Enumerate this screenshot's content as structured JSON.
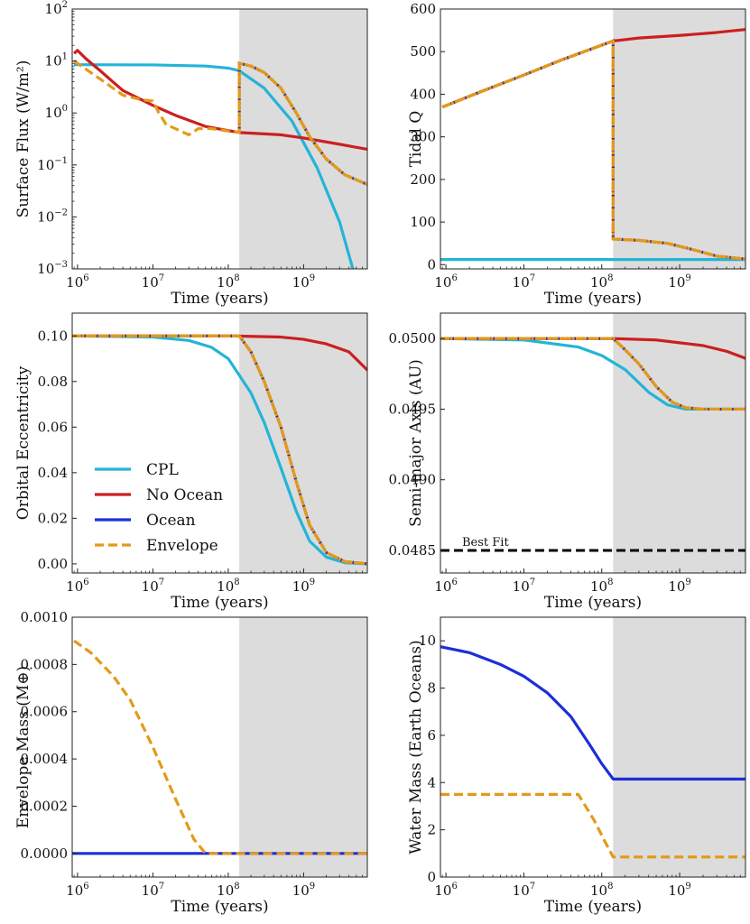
{
  "colors": {
    "CPL": "#23b4d8",
    "No Ocean": "#cc1f1f",
    "Ocean": "#1c2fd6",
    "Envelope": "#e39a1a",
    "shade": "#dcdcdc",
    "best_fit": "#000000"
  },
  "legend": {
    "placement": "lower-left of Orbital Eccentricity panel",
    "entries": [
      "CPL",
      "No Ocean",
      "Ocean",
      "Envelope"
    ]
  },
  "chart_data": [
    {
      "id": "surface_flux",
      "type": "line",
      "xscale": "log",
      "yscale": "log",
      "xlim": [
        850000,
        7000000000
      ],
      "ylim": [
        0.001,
        100
      ],
      "xlabel": "Time (years)",
      "ylabel": "Surface Flux (W/m²)",
      "xticks": [
        1000000,
        10000000,
        100000000,
        1000000000
      ],
      "xtick_labels": [
        "10⁶",
        "10⁷",
        "10⁸",
        "10⁹"
      ],
      "yticks": [
        0.001,
        0.01,
        0.1,
        1,
        10,
        100
      ],
      "ytick_labels": [
        "10⁻³",
        "10⁻²",
        "10⁻¹",
        "10⁰",
        "10¹",
        "10²"
      ],
      "shade_from": 140000000,
      "series": [
        {
          "name": "CPL",
          "style": "solid",
          "x": [
            900000,
            10000000,
            50000000,
            100000000,
            140000000,
            300000000,
            700000000,
            1500000000,
            3000000000,
            4500000000
          ],
          "y": [
            8.5,
            8.4,
            8.0,
            7.3,
            6.5,
            3.0,
            0.7,
            0.09,
            0.008,
            0.001
          ]
        },
        {
          "name": "No Ocean",
          "style": "solid",
          "x": [
            900000,
            1000000,
            1300000,
            2000000,
            4000000,
            10000000,
            20000000,
            50000000,
            140000000,
            500000000,
            1000000000,
            3000000000,
            7000000000
          ],
          "y": [
            14,
            16,
            11,
            6.5,
            2.7,
            1.4,
            0.9,
            0.55,
            0.42,
            0.38,
            0.33,
            0.25,
            0.2
          ]
        },
        {
          "name": "Ocean",
          "style": "dotted",
          "x": [
            140000000,
            140000000,
            200000000,
            300000000,
            500000000,
            800000000,
            1200000000,
            2000000000,
            3500000000,
            7000000000
          ],
          "y": [
            0.42,
            9.0,
            8.0,
            6.0,
            3.0,
            1.0,
            0.35,
            0.13,
            0.065,
            0.042
          ]
        },
        {
          "name": "Envelope",
          "style": "dashed",
          "x": [
            900000,
            1000000,
            2000000,
            4000000,
            7000000,
            10000000,
            12000000,
            15000000,
            30000000,
            40000000,
            60000000,
            100000000,
            140000000,
            140000000,
            200000000,
            300000000,
            500000000,
            800000000,
            1200000000,
            2000000000,
            3500000000,
            7000000000
          ],
          "y": [
            10,
            9,
            4.5,
            2.2,
            1.8,
            1.7,
            1.0,
            0.6,
            0.38,
            0.5,
            0.5,
            0.45,
            0.42,
            9.0,
            8.0,
            6.0,
            3.0,
            1.0,
            0.35,
            0.13,
            0.065,
            0.042
          ]
        }
      ]
    },
    {
      "id": "tidal_q",
      "type": "line",
      "xscale": "log",
      "yscale": "linear",
      "xlim": [
        850000,
        7000000000
      ],
      "ylim": [
        -10,
        600
      ],
      "xlabel": "Time (years)",
      "ylabel": "Tidal Q",
      "xticks": [
        1000000,
        10000000,
        100000000,
        1000000000
      ],
      "xtick_labels": [
        "10⁶",
        "10⁷",
        "10⁸",
        "10⁹"
      ],
      "yticks": [
        0,
        100,
        200,
        300,
        400,
        500,
        600
      ],
      "ytick_labels": [
        "0",
        "100",
        "200",
        "300",
        "400",
        "500",
        "600"
      ],
      "shade_from": 140000000,
      "series": [
        {
          "name": "CPL",
          "style": "solid",
          "x": [
            850000,
            7000000000
          ],
          "y": [
            12,
            12
          ]
        },
        {
          "name": "No Ocean",
          "style": "solid",
          "x": [
            900000,
            3000000,
            10000000,
            30000000,
            140000000,
            300000000,
            1000000000,
            3000000000,
            7000000000
          ],
          "y": [
            370,
            408,
            445,
            480,
            525,
            532,
            538,
            545,
            552
          ]
        },
        {
          "name": "Ocean",
          "style": "dotted",
          "x": [
            900000,
            3000000,
            10000000,
            30000000,
            140000000,
            140000000,
            300000000,
            700000000,
            1500000000,
            3000000000,
            7000000000
          ],
          "y": [
            370,
            408,
            445,
            480,
            525,
            60,
            57,
            50,
            35,
            20,
            13
          ]
        },
        {
          "name": "Envelope",
          "style": "dashed",
          "x": [
            900000,
            3000000,
            10000000,
            30000000,
            140000000,
            140000000,
            300000000,
            700000000,
            1500000000,
            3000000000,
            7000000000
          ],
          "y": [
            370,
            408,
            445,
            480,
            525,
            60,
            57,
            50,
            35,
            20,
            13
          ]
        }
      ]
    },
    {
      "id": "eccentricity",
      "type": "line",
      "xscale": "log",
      "yscale": "linear",
      "xlim": [
        850000,
        7000000000
      ],
      "ylim": [
        -0.004,
        0.11
      ],
      "xlabel": "Time (years)",
      "ylabel": "Orbital Eccentricity",
      "xticks": [
        1000000,
        10000000,
        100000000,
        1000000000
      ],
      "xtick_labels": [
        "10⁶",
        "10⁷",
        "10⁸",
        "10⁹"
      ],
      "yticks": [
        0,
        0.02,
        0.04,
        0.06,
        0.08,
        0.1
      ],
      "ytick_labels": [
        "0.00",
        "0.02",
        "0.04",
        "0.06",
        "0.08",
        "0.10"
      ],
      "shade_from": 140000000,
      "legend": true,
      "series": [
        {
          "name": "CPL",
          "style": "solid",
          "x": [
            850000,
            10000000,
            30000000,
            60000000,
            100000000,
            200000000,
            300000000,
            500000000,
            800000000,
            1200000000,
            2000000000,
            3500000000,
            7000000000
          ],
          "y": [
            0.1,
            0.0995,
            0.098,
            0.095,
            0.09,
            0.075,
            0.062,
            0.042,
            0.023,
            0.01,
            0.003,
            0.0005,
            0
          ]
        },
        {
          "name": "No Ocean",
          "style": "solid",
          "x": [
            850000,
            100000000,
            500000000,
            1000000000,
            2000000000,
            4000000000,
            7000000000
          ],
          "y": [
            0.1,
            0.1,
            0.0995,
            0.0985,
            0.0965,
            0.093,
            0.085
          ]
        },
        {
          "name": "Ocean",
          "style": "dotted",
          "x": [
            850000,
            140000000,
            200000000,
            300000000,
            500000000,
            800000000,
            1200000000,
            2000000000,
            3500000000,
            7000000000
          ],
          "y": [
            0.1,
            0.1,
            0.093,
            0.08,
            0.06,
            0.036,
            0.017,
            0.005,
            0.001,
            0
          ]
        },
        {
          "name": "Envelope",
          "style": "dashed",
          "x": [
            850000,
            140000000,
            200000000,
            300000000,
            500000000,
            800000000,
            1200000000,
            2000000000,
            3500000000,
            7000000000
          ],
          "y": [
            0.1,
            0.1,
            0.093,
            0.08,
            0.06,
            0.036,
            0.017,
            0.005,
            0.001,
            0
          ]
        }
      ]
    },
    {
      "id": "semi_major_axis",
      "type": "line",
      "xscale": "log",
      "yscale": "linear",
      "xlim": [
        850000,
        7000000000
      ],
      "ylim": [
        0.04834,
        0.05018
      ],
      "xlabel": "Time (years)",
      "ylabel": "Semi-major Axis (AU)",
      "xticks": [
        1000000,
        10000000,
        100000000,
        1000000000
      ],
      "xtick_labels": [
        "10⁶",
        "10⁷",
        "10⁸",
        "10⁹"
      ],
      "yticks": [
        0.0485,
        0.049,
        0.0495,
        0.05
      ],
      "ytick_labels": [
        "0.0485",
        "0.0490",
        "0.0495",
        "0.0500"
      ],
      "shade_from": 140000000,
      "annotation": {
        "text": "Best Fit",
        "y": 0.0485
      },
      "series": [
        {
          "name": "CPL",
          "style": "solid",
          "x": [
            850000,
            10000000,
            50000000,
            100000000,
            200000000,
            400000000,
            700000000,
            1200000000,
            2000000000,
            7000000000
          ],
          "y": [
            0.05,
            0.04999,
            0.04994,
            0.04988,
            0.04978,
            0.04962,
            0.04953,
            0.0495,
            0.0495,
            0.0495
          ]
        },
        {
          "name": "No Ocean",
          "style": "solid",
          "x": [
            850000,
            140000000,
            500000000,
            1000000000,
            2000000000,
            4000000000,
            7000000000
          ],
          "y": [
            0.05,
            0.05,
            0.04999,
            0.04997,
            0.04995,
            0.04991,
            0.04986
          ]
        },
        {
          "name": "Ocean",
          "style": "dotted",
          "x": [
            850000,
            140000000,
            200000000,
            300000000,
            500000000,
            800000000,
            1200000000,
            2000000000,
            7000000000
          ],
          "y": [
            0.05,
            0.05,
            0.04992,
            0.04982,
            0.04966,
            0.04955,
            0.04951,
            0.0495,
            0.0495
          ]
        },
        {
          "name": "Envelope",
          "style": "dashed",
          "x": [
            850000,
            140000000,
            200000000,
            300000000,
            500000000,
            800000000,
            1200000000,
            2000000000,
            7000000000
          ],
          "y": [
            0.05,
            0.05,
            0.04992,
            0.04982,
            0.04966,
            0.04955,
            0.04951,
            0.0495,
            0.0495
          ]
        },
        {
          "name": "Best Fit",
          "style": "bestfit",
          "x": [
            850000,
            7000000000
          ],
          "y": [
            0.0485,
            0.0485
          ]
        }
      ]
    },
    {
      "id": "envelope_mass",
      "type": "line",
      "xscale": "log",
      "yscale": "linear",
      "xlim": [
        850000,
        7000000000
      ],
      "ylim": [
        -0.0001,
        0.001
      ],
      "xlabel": "Time (years)",
      "ylabel": "Envelope Mass (M⊕)",
      "xticks": [
        1000000,
        10000000,
        100000000,
        1000000000
      ],
      "xtick_labels": [
        "10⁶",
        "10⁷",
        "10⁸",
        "10⁹"
      ],
      "yticks": [
        0,
        0.0002,
        0.0004,
        0.0006,
        0.0008,
        0.001
      ],
      "ytick_labels": [
        "0.0000",
        "0.0002",
        "0.0004",
        "0.0006",
        "0.0008",
        "0.0010"
      ],
      "shade_from": 140000000,
      "series": [
        {
          "name": "Ocean",
          "style": "solid",
          "x": [
            850000,
            7000000000
          ],
          "y": [
            0,
            0
          ]
        },
        {
          "name": "Envelope",
          "style": "dashed",
          "x": [
            900000,
            1500000,
            3000000,
            5000000,
            10000000,
            20000000,
            35000000,
            50000000,
            7000000000
          ],
          "y": [
            0.0009,
            0.00085,
            0.00075,
            0.00065,
            0.00045,
            0.00023,
            6e-05,
            0,
            0
          ]
        }
      ]
    },
    {
      "id": "water_mass",
      "type": "line",
      "xscale": "log",
      "yscale": "linear",
      "xlim": [
        850000,
        7000000000
      ],
      "ylim": [
        0,
        11
      ],
      "xlabel": "Time (years)",
      "ylabel": "Water Mass (Earth Oceans)",
      "xticks": [
        1000000,
        10000000,
        100000000,
        1000000000
      ],
      "xtick_labels": [
        "10⁶",
        "10⁷",
        "10⁸",
        "10⁹"
      ],
      "yticks": [
        0,
        2,
        4,
        6,
        8,
        10
      ],
      "ytick_labels": [
        "0",
        "2",
        "4",
        "6",
        "8",
        "10"
      ],
      "shade_from": 140000000,
      "series": [
        {
          "name": "Ocean",
          "style": "solid",
          "x": [
            850000,
            2000000,
            5000000,
            10000000,
            20000000,
            40000000,
            70000000,
            100000000,
            140000000,
            7000000000
          ],
          "y": [
            9.75,
            9.5,
            9.0,
            8.5,
            7.8,
            6.8,
            5.6,
            4.8,
            4.15,
            4.15
          ]
        },
        {
          "name": "Envelope",
          "style": "dashed",
          "x": [
            850000,
            50000000,
            80000000,
            110000000,
            140000000,
            7000000000
          ],
          "y": [
            3.5,
            3.5,
            2.4,
            1.5,
            0.85,
            0.85
          ]
        }
      ]
    }
  ]
}
